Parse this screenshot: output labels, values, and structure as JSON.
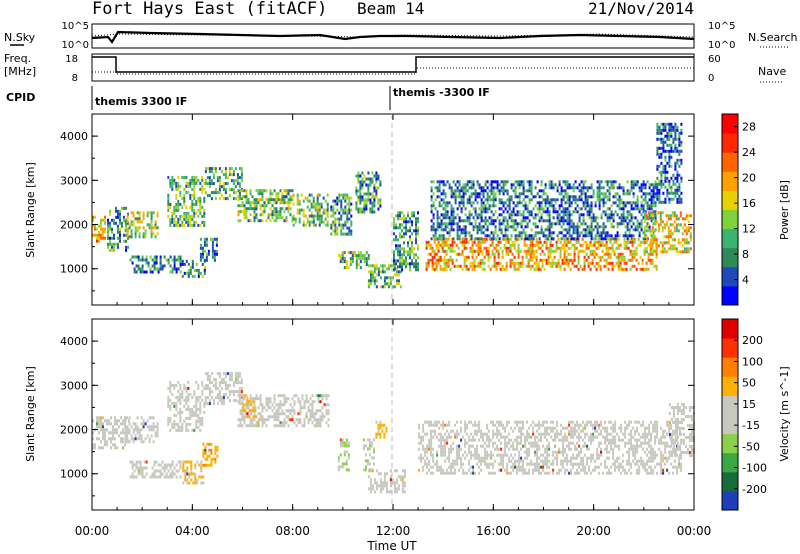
{
  "header": {
    "title": "Fort Hays East (fitACF)",
    "beam": "Beam 14",
    "date": "21/Nov/2014"
  },
  "noise_panel": {
    "left_label": "N.Sky",
    "right_label": "N.Search",
    "left_ticks": [
      "10^5",
      "10^0"
    ],
    "right_ticks": [
      "10^5",
      "10^0"
    ]
  },
  "freq_panel": {
    "left_label_1": "Freq.",
    "left_label_2": "[MHz]",
    "right_label": "Nave",
    "left_ticks": [
      "18",
      "8"
    ],
    "right_ticks": [
      "60",
      "0"
    ]
  },
  "cpid": {
    "label": "CPID",
    "modes": [
      {
        "name": "themis 3300 IF",
        "start_hour": 0
      },
      {
        "name": "themis -3300 IF",
        "start_hour": 12.0
      }
    ]
  },
  "chart_data": [
    {
      "type": "heatmap",
      "parameter": "Power",
      "xlabel": "",
      "ylabel": "Slant Range [km]",
      "xlim_hours": [
        0,
        24
      ],
      "ylim_km": [
        180,
        4500
      ],
      "y_ticks": [
        "1000",
        "2000",
        "3000",
        "4000"
      ],
      "colorbar": {
        "label": "Power [dB]",
        "range": [
          0,
          30
        ],
        "ticks": [
          "4",
          "8",
          "12",
          "16",
          "20",
          "24",
          "28"
        ],
        "colors": [
          "#0000ff",
          "#204ab8",
          "#2e8b57",
          "#3cb371",
          "#7fd23c",
          "#e6d200",
          "#ffa000",
          "#ff6400",
          "#ff2800",
          "#ff0000"
        ]
      },
      "regions": [
        {
          "t": [
            0.0,
            0.5
          ],
          "r": [
            1600,
            2200
          ],
          "dB": 18
        },
        {
          "t": [
            0.6,
            1.4
          ],
          "r": [
            1400,
            2400
          ],
          "dB": 9
        },
        {
          "t": [
            1.3,
            2.6
          ],
          "r": [
            1700,
            2300
          ],
          "dB": 14
        },
        {
          "t": [
            1.5,
            3.5
          ],
          "r": [
            900,
            1300
          ],
          "dB": 7
        },
        {
          "t": [
            3.0,
            4.5
          ],
          "r": [
            2000,
            3100
          ],
          "dB": 11
        },
        {
          "t": [
            3.5,
            4.5
          ],
          "r": [
            800,
            1200
          ],
          "dB": 9
        },
        {
          "t": [
            4.3,
            5.0
          ],
          "r": [
            1200,
            1700
          ],
          "dB": 8
        },
        {
          "t": [
            4.5,
            6.0
          ],
          "r": [
            2600,
            3300
          ],
          "dB": 10
        },
        {
          "t": [
            5.8,
            8.0
          ],
          "r": [
            2100,
            2800
          ],
          "dB": 12
        },
        {
          "t": [
            8.0,
            9.4
          ],
          "r": [
            2000,
            2700
          ],
          "dB": 12
        },
        {
          "t": [
            9.5,
            10.3
          ],
          "r": [
            1800,
            2700
          ],
          "dB": 9
        },
        {
          "t": [
            9.8,
            11.0
          ],
          "r": [
            1000,
            1400
          ],
          "dB": 12
        },
        {
          "t": [
            10.5,
            11.5
          ],
          "r": [
            2300,
            3200
          ],
          "dB": 9
        },
        {
          "t": [
            11.0,
            12.3
          ],
          "r": [
            600,
            1100
          ],
          "dB": 11
        },
        {
          "t": [
            12.0,
            13.0
          ],
          "r": [
            1000,
            2300
          ],
          "dB": 9
        },
        {
          "t": [
            13.3,
            22.5
          ],
          "r": [
            1000,
            1700
          ],
          "dB": 19
        },
        {
          "t": [
            13.5,
            22.5
          ],
          "r": [
            1700,
            3000
          ],
          "dB": 7
        },
        {
          "t": [
            22.0,
            23.9
          ],
          "r": [
            1400,
            2300
          ],
          "dB": 17
        },
        {
          "t": [
            22.5,
            23.5
          ],
          "r": [
            2500,
            4300
          ],
          "dB": 6
        }
      ]
    },
    {
      "type": "heatmap",
      "parameter": "Velocity",
      "xlabel": "Time UT",
      "ylabel": "Slant Range [km]",
      "xlim_hours": [
        0,
        24
      ],
      "ylim_km": [
        180,
        4500
      ],
      "x_ticks": [
        "00:00",
        "04:00",
        "08:00",
        "12:00",
        "16:00",
        "20:00",
        "00:00"
      ],
      "y_ticks": [
        "1000",
        "2000",
        "3000",
        "4000"
      ],
      "colorbar": {
        "label": "Velocity [m s^-1]",
        "range": [
          -250,
          250
        ],
        "ticks": [
          "200",
          "100",
          "50",
          "15",
          "-15",
          "-50",
          "-100",
          "-200"
        ],
        "colors": [
          "#1f3fb8",
          "#1a6b3a",
          "#3aa845",
          "#8ad04a",
          "#c8c8c0",
          "#c8c8c0",
          "#ffb000",
          "#ff8000",
          "#ff3000",
          "#e00000"
        ]
      },
      "regions": [
        {
          "t": [
            0.0,
            1.5
          ],
          "r": [
            1600,
            2300
          ],
          "v": 0
        },
        {
          "t": [
            1.3,
            2.6
          ],
          "r": [
            1700,
            2300
          ],
          "v": -5
        },
        {
          "t": [
            1.5,
            3.5
          ],
          "r": [
            900,
            1300
          ],
          "v": 0
        },
        {
          "t": [
            3.0,
            4.5
          ],
          "r": [
            2000,
            3100
          ],
          "v": 0
        },
        {
          "t": [
            3.6,
            4.4
          ],
          "r": [
            800,
            1300
          ],
          "v": 60
        },
        {
          "t": [
            4.4,
            5.0
          ],
          "r": [
            1200,
            1700
          ],
          "v": 80
        },
        {
          "t": [
            4.5,
            6.0
          ],
          "r": [
            2600,
            3300
          ],
          "v": 0
        },
        {
          "t": [
            5.8,
            9.4
          ],
          "r": [
            2100,
            2800
          ],
          "v": 0
        },
        {
          "t": [
            6.0,
            6.5
          ],
          "r": [
            2300,
            2800
          ],
          "v": 60
        },
        {
          "t": [
            9.8,
            10.2
          ],
          "r": [
            1100,
            1800
          ],
          "v": -45
        },
        {
          "t": [
            10.8,
            11.2
          ],
          "r": [
            1100,
            1800
          ],
          "v": -45
        },
        {
          "t": [
            11.0,
            12.5
          ],
          "r": [
            600,
            1100
          ],
          "v": 0
        },
        {
          "t": [
            11.3,
            11.7
          ],
          "r": [
            1800,
            2200
          ],
          "v": 60
        },
        {
          "t": [
            13.0,
            23.5
          ],
          "r": [
            1000,
            2200
          ],
          "v": 0
        },
        {
          "t": [
            23.0,
            24.0
          ],
          "r": [
            1400,
            2600
          ],
          "v": 0
        }
      ]
    }
  ]
}
